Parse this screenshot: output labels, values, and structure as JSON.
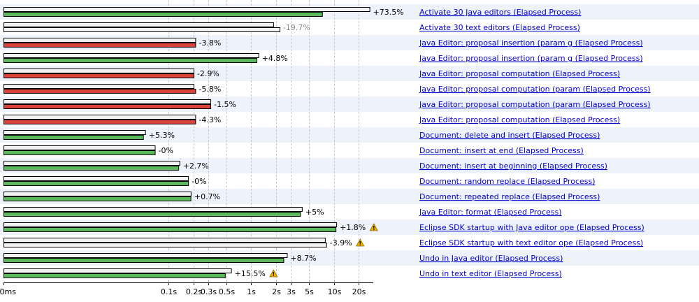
{
  "chart_data": {
    "type": "bar",
    "title": "",
    "xlabel": "",
    "ylabel": "",
    "x_scale": "log",
    "xlim_seconds": [
      0.001,
      30
    ],
    "grid": true,
    "x_ticks": [
      {
        "label": "0ms",
        "value": 0.001
      },
      {
        "label": "0.1s",
        "value": 0.1
      },
      {
        "label": "0.2s",
        "value": 0.2
      },
      {
        "label": "0.3s",
        "value": 0.3
      },
      {
        "label": "0.5s",
        "value": 0.5
      },
      {
        "label": "1s",
        "value": 1
      },
      {
        "label": "2s",
        "value": 2
      },
      {
        "label": "3s",
        "value": 3
      },
      {
        "label": "5s",
        "value": 5
      },
      {
        "label": "10s",
        "value": 10
      },
      {
        "label": "20s",
        "value": 20
      }
    ],
    "colors": {
      "baseline_bar": "#f2f2f2",
      "faster": "#5cb85c",
      "slower": "#d9433a",
      "unchanged": "#f2f2f2",
      "row_stripe": "#eef2fb",
      "link": "#0000cc",
      "warning": "#f0b400"
    },
    "rows": [
      {
        "name": "Activate 30 Java editors (Elapsed Process)",
        "delta": "+73.5%",
        "baseline_s": 27.0,
        "current_s": 7.2,
        "status": "faster",
        "warning": false,
        "delta_grey": false
      },
      {
        "name": "Activate 30 text editors (Elapsed Process)",
        "delta": "-19.7%",
        "baseline_s": 1.85,
        "current_s": 2.2,
        "status": "unchanged",
        "warning": false,
        "delta_grey": true
      },
      {
        "name": "Java Editor: proposal insertion (param g (Elapsed Process)",
        "delta": "-3.8%",
        "baseline_s": 0.21,
        "current_s": 0.21,
        "status": "slower",
        "warning": false,
        "delta_grey": false
      },
      {
        "name": "Java Editor: proposal insertion (param g (Elapsed Process)",
        "delta": "+4.8%",
        "baseline_s": 1.22,
        "current_s": 1.16,
        "status": "faster",
        "warning": false,
        "delta_grey": false
      },
      {
        "name": "Java Editor: proposal computation (Elapsed Process)",
        "delta": "-2.9%",
        "baseline_s": 0.2,
        "current_s": 0.2,
        "status": "slower",
        "warning": false,
        "delta_grey": false
      },
      {
        "name": "Java Editor: proposal computation (param (Elapsed Process)",
        "delta": "-5.8%",
        "baseline_s": 0.2,
        "current_s": 0.21,
        "status": "slower",
        "warning": false,
        "delta_grey": false
      },
      {
        "name": "Java Editor: proposal computation (param (Elapsed Process)",
        "delta": "-1.5%",
        "baseline_s": 0.32,
        "current_s": 0.32,
        "status": "slower",
        "warning": false,
        "delta_grey": false
      },
      {
        "name": "Java Editor: proposal computation (Elapsed Process)",
        "delta": "-4.3%",
        "baseline_s": 0.21,
        "current_s": 0.21,
        "status": "slower",
        "warning": false,
        "delta_grey": false
      },
      {
        "name": "Document: delete and insert (Elapsed Process)",
        "delta": "+5.3%",
        "baseline_s": 0.052,
        "current_s": 0.049,
        "status": "faster",
        "warning": false,
        "delta_grey": false
      },
      {
        "name": "Document: insert at end (Elapsed Process)",
        "delta": "-0%",
        "baseline_s": 0.068,
        "current_s": 0.068,
        "status": "faster",
        "warning": false,
        "delta_grey": false
      },
      {
        "name": "Document: insert at beginning (Elapsed Process)",
        "delta": "+2.7%",
        "baseline_s": 0.135,
        "current_s": 0.131,
        "status": "faster",
        "warning": false,
        "delta_grey": false
      },
      {
        "name": "Document: random replace (Elapsed Process)",
        "delta": "-0%",
        "baseline_s": 0.172,
        "current_s": 0.172,
        "status": "faster",
        "warning": false,
        "delta_grey": false
      },
      {
        "name": "Document: repeated replace (Elapsed Process)",
        "delta": "+0.7%",
        "baseline_s": 0.185,
        "current_s": 0.184,
        "status": "faster",
        "warning": false,
        "delta_grey": false
      },
      {
        "name": "Java Editor: format (Elapsed Process)",
        "delta": "+5%",
        "baseline_s": 4.1,
        "current_s": 3.9,
        "status": "faster",
        "warning": false,
        "delta_grey": false
      },
      {
        "name": "Eclipse SDK startup with Java editor ope (Elapsed Process)",
        "delta": "+1.8%",
        "baseline_s": 10.7,
        "current_s": 10.5,
        "status": "faster",
        "warning": true,
        "delta_grey": false
      },
      {
        "name": "Eclipse SDK startup with text editor ope (Elapsed Process)",
        "delta": "-3.9%",
        "baseline_s": 7.8,
        "current_s": 8.1,
        "status": "unchanged",
        "warning": true,
        "delta_grey": false
      },
      {
        "name": "Undo in Java editor (Elapsed Process)",
        "delta": "+8.7%",
        "baseline_s": 2.7,
        "current_s": 2.45,
        "status": "faster",
        "warning": false,
        "delta_grey": false
      },
      {
        "name": "Undo in text editor (Elapsed Process)",
        "delta": "+15.5%",
        "baseline_s": 0.57,
        "current_s": 0.48,
        "status": "faster",
        "warning": true,
        "delta_grey": false
      }
    ]
  }
}
